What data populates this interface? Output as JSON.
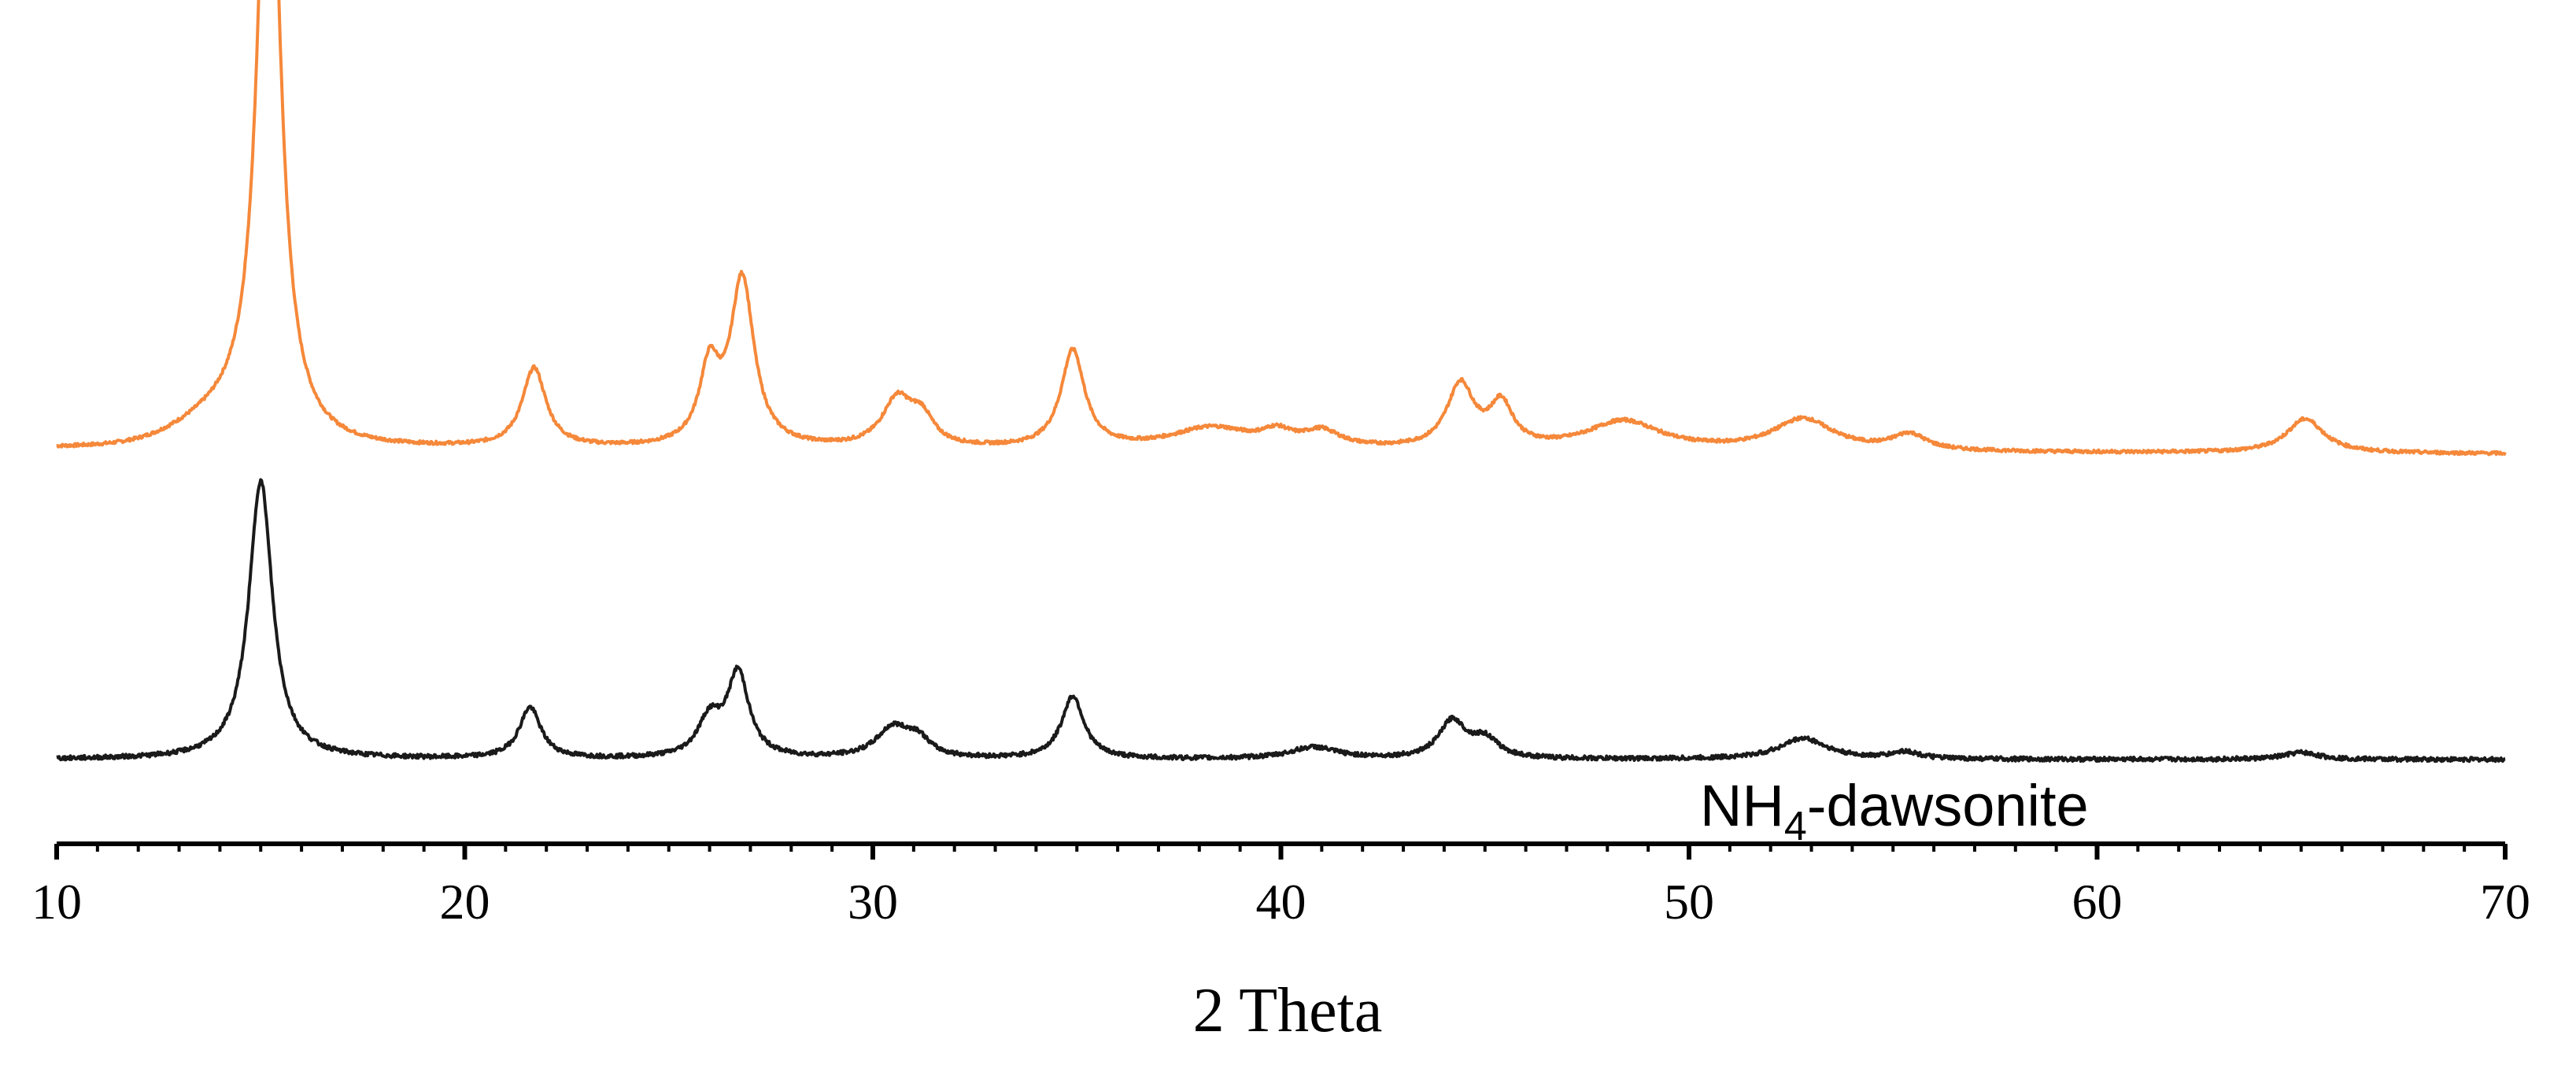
{
  "chart_data": {
    "type": "line",
    "xlabel": "2 Theta",
    "ylabel": "",
    "title": "",
    "xlim": [
      10,
      70
    ],
    "x_ticks": [
      10,
      20,
      30,
      40,
      50,
      60,
      70
    ],
    "x_tick_labels": [
      "10",
      "20",
      "30",
      "40",
      "50",
      "60",
      "70"
    ],
    "grid": false,
    "y_units": "arbitrary intensity (offset stacked traces)",
    "series": [
      {
        "color": "#f5883a",
        "baseline": 0.5,
        "peaks": [
          {
            "x": 15.2,
            "height": 2.62,
            "width": 0.32
          },
          {
            "x": 21.7,
            "height": 0.3,
            "width": 0.35
          },
          {
            "x": 26.0,
            "height": 0.28,
            "width": 0.3
          },
          {
            "x": 26.8,
            "height": 0.63,
            "width": 0.35
          },
          {
            "x": 30.6,
            "height": 0.18,
            "width": 0.45
          },
          {
            "x": 31.2,
            "height": 0.1,
            "width": 0.35
          },
          {
            "x": 34.9,
            "height": 0.37,
            "width": 0.35
          },
          {
            "x": 38.3,
            "height": 0.08,
            "width": 1.2
          },
          {
            "x": 39.9,
            "height": 0.05,
            "width": 0.45
          },
          {
            "x": 41.0,
            "height": 0.06,
            "width": 0.55
          },
          {
            "x": 44.4,
            "height": 0.24,
            "width": 0.4
          },
          {
            "x": 45.4,
            "height": 0.16,
            "width": 0.35
          },
          {
            "x": 48.4,
            "height": 0.11,
            "width": 1.1
          },
          {
            "x": 52.8,
            "height": 0.12,
            "width": 0.9
          },
          {
            "x": 55.4,
            "height": 0.06,
            "width": 0.5
          },
          {
            "x": 65.1,
            "height": 0.13,
            "width": 0.55
          }
        ]
      },
      {
        "name": "NH₄-dawsonite",
        "color": "#1a1a1a",
        "baseline": 0.0,
        "peaks": [
          {
            "x": 15.0,
            "height": 1.2,
            "width": 0.35
          },
          {
            "x": 21.6,
            "height": 0.22,
            "width": 0.32
          },
          {
            "x": 26.0,
            "height": 0.16,
            "width": 0.35
          },
          {
            "x": 26.7,
            "height": 0.36,
            "width": 0.32
          },
          {
            "x": 30.5,
            "height": 0.13,
            "width": 0.5
          },
          {
            "x": 31.1,
            "height": 0.07,
            "width": 0.35
          },
          {
            "x": 34.9,
            "height": 0.27,
            "width": 0.33
          },
          {
            "x": 40.8,
            "height": 0.05,
            "width": 0.7
          },
          {
            "x": 44.2,
            "height": 0.16,
            "width": 0.4
          },
          {
            "x": 45.0,
            "height": 0.08,
            "width": 0.4
          },
          {
            "x": 52.8,
            "height": 0.09,
            "width": 0.7
          },
          {
            "x": 55.3,
            "height": 0.03,
            "width": 0.4
          },
          {
            "x": 65.0,
            "height": 0.03,
            "width": 0.5
          }
        ]
      }
    ]
  },
  "labels": {
    "series_label_main": "NH",
    "series_label_sub": "4",
    "series_label_rest": "-dawsonite"
  }
}
